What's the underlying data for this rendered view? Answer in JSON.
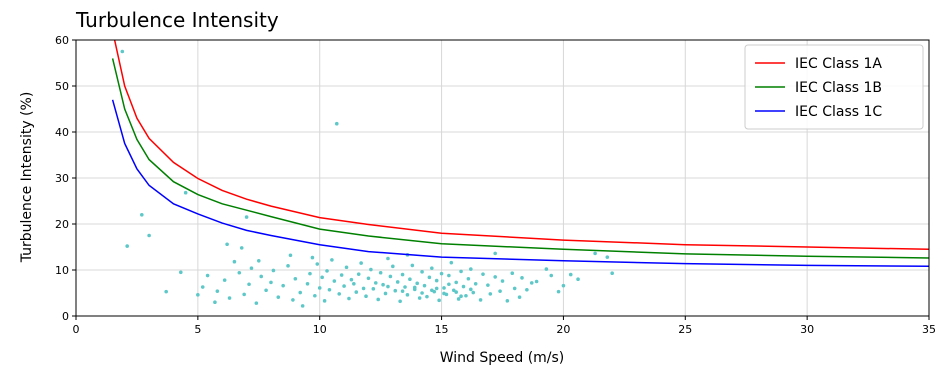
{
  "chart_data": {
    "type": "line",
    "title": "Turbulence Intensity",
    "xlabel": "Wind Speed (m/s)",
    "ylabel": "Turbulence Intensity (%)",
    "xlim": [
      0,
      35
    ],
    "ylim": [
      0,
      60
    ],
    "xticks": [
      0,
      5,
      10,
      15,
      20,
      25,
      30,
      35
    ],
    "yticks": [
      0,
      10,
      20,
      30,
      40,
      50,
      60
    ],
    "grid": true,
    "legend_position": "top-right",
    "series": [
      {
        "name": "IEC Class 1A",
        "color": "#ff0000",
        "x": [
          1.5,
          2,
          2.5,
          3,
          4,
          5,
          6,
          7,
          8,
          10,
          12,
          15,
          20,
          25,
          30,
          35
        ],
        "y": [
          62,
          50,
          43,
          38.6,
          33.4,
          29.9,
          27.3,
          25.4,
          23.9,
          21.4,
          19.9,
          18.0,
          16.5,
          15.5,
          15.0,
          14.5
        ]
      },
      {
        "name": "IEC Class 1B",
        "color": "#008000",
        "x": [
          1.5,
          2,
          2.5,
          3,
          4,
          5,
          6,
          7,
          8,
          10,
          12,
          15,
          20,
          25,
          30,
          35
        ],
        "y": [
          56,
          45,
          38.4,
          34.0,
          29.2,
          26.4,
          24.4,
          23.0,
          21.6,
          18.9,
          17.4,
          15.7,
          14.5,
          13.5,
          13.0,
          12.6
        ]
      },
      {
        "name": "IEC Class 1C",
        "color": "#0000ff",
        "x": [
          1.5,
          2,
          2.5,
          3,
          4,
          5,
          6,
          7,
          8,
          10,
          12,
          15,
          20,
          25,
          30,
          35
        ],
        "y": [
          47,
          37.5,
          32.0,
          28.4,
          24.4,
          22.2,
          20.2,
          18.6,
          17.5,
          15.5,
          14.0,
          12.8,
          12.0,
          11.4,
          11.0,
          10.8
        ]
      }
    ],
    "scatter": {
      "color": "#5ec8c8",
      "points": [
        [
          1.9,
          57.5
        ],
        [
          2.1,
          15.2
        ],
        [
          2.7,
          22.0
        ],
        [
          3.0,
          17.5
        ],
        [
          3.7,
          5.3
        ],
        [
          4.3,
          9.5
        ],
        [
          4.5,
          26.8
        ],
        [
          7.0,
          21.5
        ],
        [
          10.7,
          41.8
        ],
        [
          6.2,
          15.6
        ],
        [
          6.8,
          14.8
        ],
        [
          7.5,
          12.0
        ],
        [
          8.8,
          13.2
        ],
        [
          9.7,
          12.7
        ],
        [
          12.8,
          12.5
        ],
        [
          13.6,
          13.3
        ],
        [
          17.2,
          13.6
        ],
        [
          21.3,
          13.6
        ],
        [
          21.8,
          12.8
        ],
        [
          22.0,
          9.3
        ],
        [
          19.3,
          10.2
        ],
        [
          19.5,
          8.8
        ],
        [
          18.9,
          7.5
        ],
        [
          19.8,
          5.3
        ],
        [
          20.0,
          6.6
        ],
        [
          20.3,
          9.0
        ],
        [
          20.6,
          8.0
        ],
        [
          5.0,
          4.6
        ],
        [
          5.2,
          6.3
        ],
        [
          5.4,
          8.8
        ],
        [
          5.7,
          3.0
        ],
        [
          5.8,
          5.4
        ],
        [
          6.1,
          7.8
        ],
        [
          6.3,
          3.9
        ],
        [
          6.5,
          11.8
        ],
        [
          6.7,
          9.4
        ],
        [
          6.9,
          4.7
        ],
        [
          7.1,
          6.9
        ],
        [
          7.2,
          10.4
        ],
        [
          7.4,
          2.8
        ],
        [
          7.6,
          8.6
        ],
        [
          7.8,
          5.6
        ],
        [
          8.0,
          7.3
        ],
        [
          8.1,
          9.9
        ],
        [
          8.3,
          4.1
        ],
        [
          8.5,
          6.6
        ],
        [
          8.7,
          10.9
        ],
        [
          8.9,
          3.5
        ],
        [
          9.0,
          8.1
        ],
        [
          9.2,
          5.1
        ],
        [
          9.3,
          2.2
        ],
        [
          9.5,
          7.0
        ],
        [
          9.6,
          9.2
        ],
        [
          9.8,
          4.4
        ],
        [
          9.9,
          11.3
        ],
        [
          10.0,
          6.1
        ],
        [
          10.1,
          8.4
        ],
        [
          10.2,
          3.3
        ],
        [
          10.3,
          9.8
        ],
        [
          10.4,
          5.7
        ],
        [
          10.5,
          12.2
        ],
        [
          10.6,
          7.6
        ],
        [
          10.8,
          4.8
        ],
        [
          10.9,
          8.9
        ],
        [
          11.0,
          6.5
        ],
        [
          11.1,
          10.6
        ],
        [
          11.2,
          3.8
        ],
        [
          11.3,
          7.9
        ],
        [
          11.5,
          5.2
        ],
        [
          11.6,
          9.1
        ],
        [
          11.7,
          11.5
        ],
        [
          11.8,
          6.0
        ],
        [
          11.9,
          4.3
        ],
        [
          12.0,
          8.2
        ],
        [
          12.1,
          10.1
        ],
        [
          12.2,
          5.9
        ],
        [
          12.3,
          7.2
        ],
        [
          12.4,
          3.6
        ],
        [
          12.5,
          9.4
        ],
        [
          12.6,
          6.8
        ],
        [
          12.7,
          4.9
        ],
        [
          12.9,
          8.6
        ],
        [
          13.0,
          10.8
        ],
        [
          13.1,
          5.5
        ],
        [
          13.2,
          7.4
        ],
        [
          13.3,
          3.2
        ],
        [
          13.4,
          9.0
        ],
        [
          13.5,
          6.3
        ],
        [
          13.6,
          4.6
        ],
        [
          13.7,
          8.0
        ],
        [
          13.8,
          11.0
        ],
        [
          13.9,
          5.8
        ],
        [
          14.0,
          7.1
        ],
        [
          14.1,
          3.9
        ],
        [
          14.2,
          9.6
        ],
        [
          14.3,
          6.6
        ],
        [
          14.4,
          4.2
        ],
        [
          14.5,
          8.4
        ],
        [
          14.6,
          10.4
        ],
        [
          14.7,
          5.3
        ],
        [
          14.8,
          7.7
        ],
        [
          14.9,
          3.4
        ],
        [
          15.0,
          9.2
        ],
        [
          15.1,
          6.1
        ],
        [
          15.2,
          4.7
        ],
        [
          15.3,
          8.8
        ],
        [
          15.4,
          11.6
        ],
        [
          15.5,
          5.6
        ],
        [
          15.6,
          7.3
        ],
        [
          15.7,
          3.7
        ],
        [
          15.8,
          9.7
        ],
        [
          15.9,
          6.4
        ],
        [
          16.0,
          4.4
        ],
        [
          16.1,
          8.1
        ],
        [
          16.2,
          10.2
        ],
        [
          16.3,
          5.1
        ],
        [
          16.4,
          7.0
        ],
        [
          16.6,
          3.5
        ],
        [
          16.7,
          9.1
        ],
        [
          16.9,
          6.7
        ],
        [
          17.0,
          4.8
        ],
        [
          17.2,
          8.5
        ],
        [
          17.4,
          5.4
        ],
        [
          17.5,
          7.6
        ],
        [
          17.7,
          3.3
        ],
        [
          17.9,
          9.3
        ],
        [
          18.0,
          6.0
        ],
        [
          18.2,
          4.1
        ],
        [
          18.3,
          8.3
        ],
        [
          18.5,
          5.7
        ],
        [
          18.7,
          7.2
        ],
        [
          14.2,
          5.0
        ],
        [
          14.6,
          5.6
        ],
        [
          15.1,
          4.9
        ],
        [
          15.6,
          5.2
        ],
        [
          13.9,
          6.2
        ],
        [
          14.8,
          6.0
        ],
        [
          15.3,
          6.9
        ],
        [
          15.8,
          4.3
        ],
        [
          13.4,
          5.4
        ],
        [
          16.2,
          5.8
        ],
        [
          12.8,
          6.4
        ],
        [
          11.4,
          7.0
        ]
      ]
    }
  }
}
